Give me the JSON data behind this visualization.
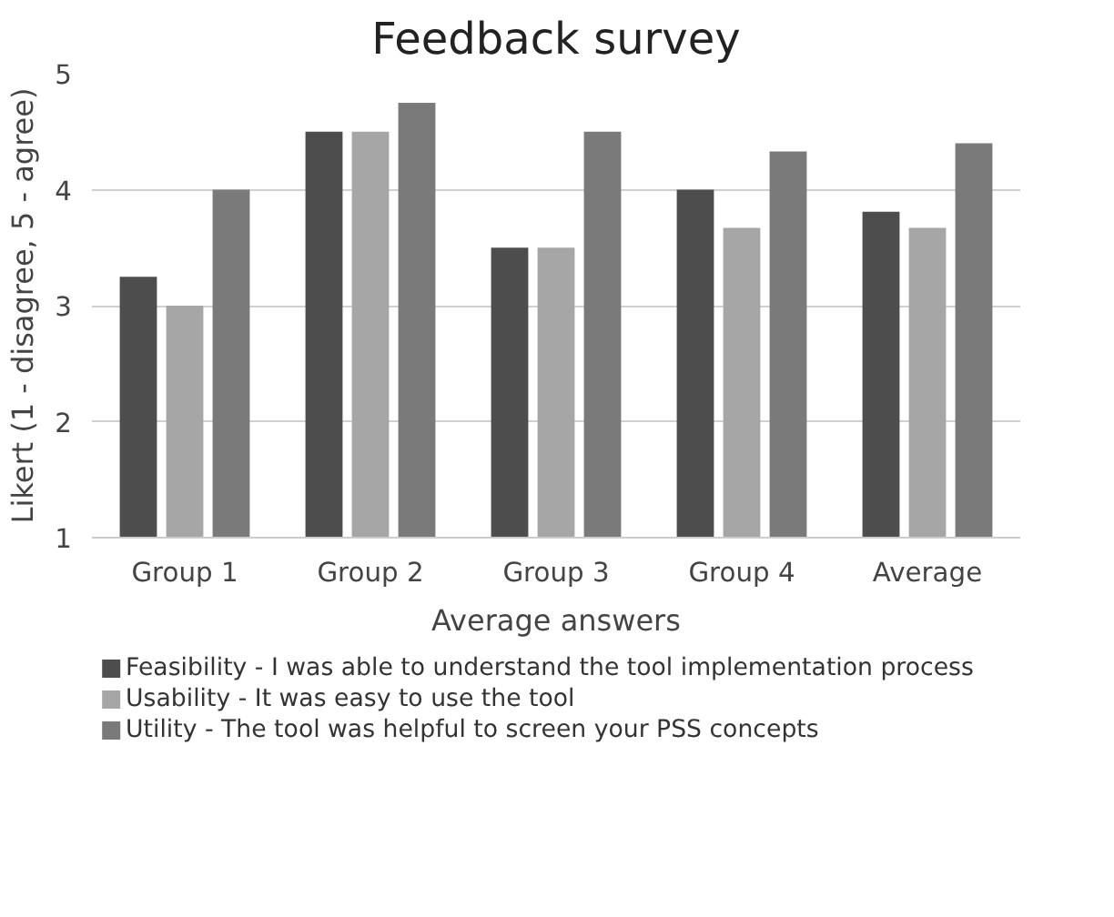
{
  "chart_data": {
    "type": "bar",
    "title": "Feedback survey",
    "xlabel": "Average answers",
    "ylabel": "Likert (1 - disagree, 5 - agree)",
    "categories": [
      "Group 1",
      "Group 2",
      "Group 3",
      "Group 4",
      "Average"
    ],
    "series": [
      {
        "name": "Feasibility - I was able to understand the tool implementation process",
        "color": "#4d4d4d",
        "values": [
          3.25,
          4.5,
          3.5,
          4.0,
          3.81
        ]
      },
      {
        "name": "Usability - It was easy to use the tool",
        "color": "#a6a6a6",
        "values": [
          3.0,
          4.5,
          3.5,
          3.67,
          3.67
        ]
      },
      {
        "name": "Utility - The tool was helpful to screen your PSS concepts",
        "color": "#7a7a7a",
        "values": [
          4.0,
          4.75,
          4.5,
          4.33,
          4.4
        ]
      }
    ],
    "ylim": [
      1,
      5
    ],
    "yticks": [
      1,
      2,
      3,
      4,
      5
    ],
    "grid": "y",
    "legend": "bottom"
  }
}
